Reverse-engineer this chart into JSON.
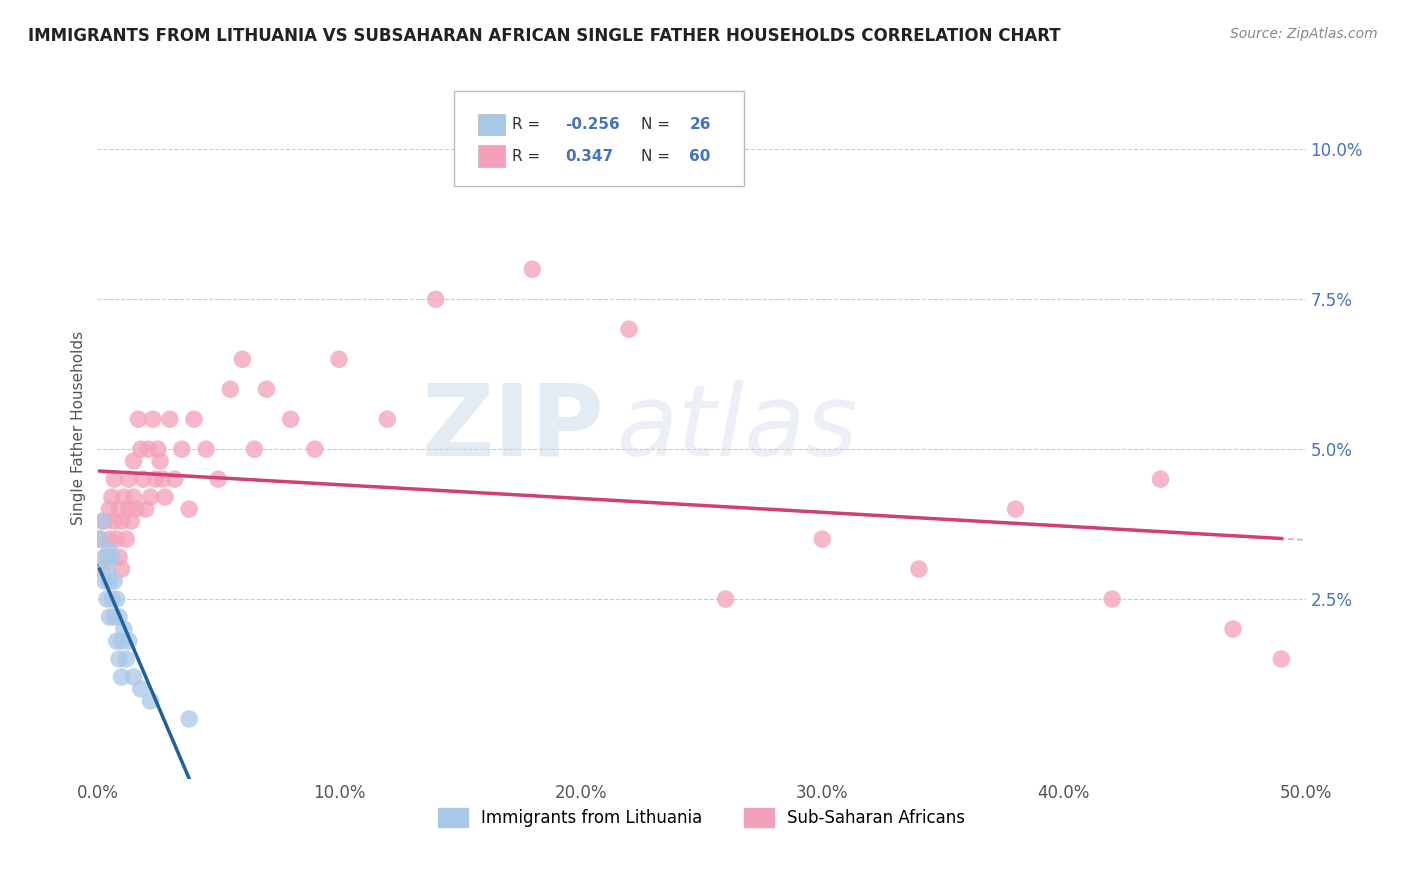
{
  "title": "IMMIGRANTS FROM LITHUANIA VS SUBSAHARAN AFRICAN SINGLE FATHER HOUSEHOLDS CORRELATION CHART",
  "source": "Source: ZipAtlas.com",
  "ylabel": "Single Father Households",
  "xlim": [
    0.0,
    0.5
  ],
  "ylim": [
    -0.005,
    0.112
  ],
  "xticks": [
    0.0,
    0.1,
    0.2,
    0.3,
    0.4,
    0.5
  ],
  "yticks": [
    0.0,
    0.025,
    0.05,
    0.075,
    0.1
  ],
  "xtick_labels": [
    "0.0%",
    "10.0%",
    "20.0%",
    "30.0%",
    "40.0%",
    "50.0%"
  ],
  "ytick_labels": [
    "",
    "2.5%",
    "5.0%",
    "7.5%",
    "10.0%"
  ],
  "legend_labels": [
    "Immigrants from Lithuania",
    "Sub-Saharan Africans"
  ],
  "R_blue": -0.256,
  "N_blue": 26,
  "R_pink": 0.347,
  "N_pink": 60,
  "blue_color": "#a8c8e8",
  "pink_color": "#f4a0b8",
  "blue_line_color": "#2060a0",
  "pink_line_color": "#d04070",
  "background_color": "#ffffff",
  "watermark_zip": "ZIP",
  "watermark_atlas": "atlas",
  "blue_scatter_x": [
    0.001,
    0.002,
    0.003,
    0.003,
    0.004,
    0.004,
    0.005,
    0.005,
    0.005,
    0.006,
    0.006,
    0.007,
    0.007,
    0.008,
    0.008,
    0.009,
    0.009,
    0.01,
    0.01,
    0.011,
    0.012,
    0.013,
    0.015,
    0.018,
    0.022,
    0.038
  ],
  "blue_scatter_y": [
    0.035,
    0.038,
    0.032,
    0.028,
    0.03,
    0.025,
    0.033,
    0.028,
    0.022,
    0.032,
    0.025,
    0.028,
    0.022,
    0.025,
    0.018,
    0.022,
    0.015,
    0.018,
    0.012,
    0.02,
    0.015,
    0.018,
    0.012,
    0.01,
    0.008,
    0.005
  ],
  "pink_scatter_x": [
    0.001,
    0.002,
    0.003,
    0.004,
    0.005,
    0.005,
    0.006,
    0.007,
    0.007,
    0.008,
    0.009,
    0.009,
    0.01,
    0.01,
    0.011,
    0.012,
    0.013,
    0.013,
    0.014,
    0.015,
    0.015,
    0.016,
    0.017,
    0.018,
    0.019,
    0.02,
    0.021,
    0.022,
    0.023,
    0.024,
    0.025,
    0.026,
    0.027,
    0.028,
    0.03,
    0.032,
    0.035,
    0.038,
    0.04,
    0.045,
    0.05,
    0.055,
    0.06,
    0.065,
    0.07,
    0.08,
    0.09,
    0.1,
    0.12,
    0.14,
    0.18,
    0.22,
    0.26,
    0.3,
    0.34,
    0.38,
    0.42,
    0.44,
    0.47,
    0.49
  ],
  "pink_scatter_y": [
    0.035,
    0.03,
    0.038,
    0.032,
    0.04,
    0.035,
    0.042,
    0.038,
    0.045,
    0.035,
    0.04,
    0.032,
    0.038,
    0.03,
    0.042,
    0.035,
    0.04,
    0.045,
    0.038,
    0.042,
    0.048,
    0.04,
    0.055,
    0.05,
    0.045,
    0.04,
    0.05,
    0.042,
    0.055,
    0.045,
    0.05,
    0.048,
    0.045,
    0.042,
    0.055,
    0.045,
    0.05,
    0.04,
    0.055,
    0.05,
    0.045,
    0.06,
    0.065,
    0.05,
    0.06,
    0.055,
    0.05,
    0.065,
    0.055,
    0.075,
    0.08,
    0.07,
    0.025,
    0.035,
    0.03,
    0.04,
    0.025,
    0.045,
    0.02,
    0.015
  ]
}
